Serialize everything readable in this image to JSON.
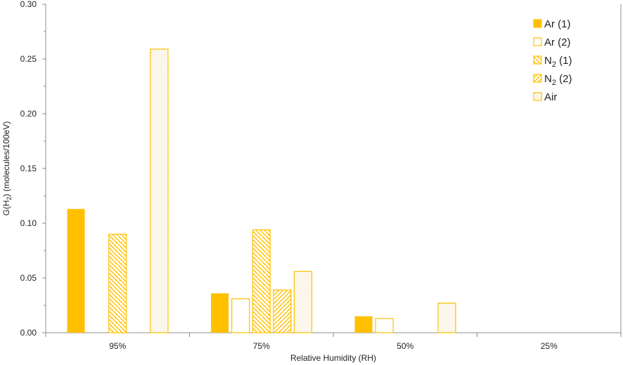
{
  "chart_data": {
    "type": "bar",
    "xlabel": "Relative Humidity (RH)",
    "ylabel": {
      "prefix": "G(H",
      "sub": "2",
      "suffix": ") (molecules/100eV)"
    },
    "ylim": [
      0,
      0.3
    ],
    "yticks": [
      "0.00",
      "0.05",
      "0.10",
      "0.15",
      "0.20",
      "0.25",
      "0.30"
    ],
    "categories": [
      "95%",
      "75%",
      "50%",
      "25%"
    ],
    "legend_position": "top-right",
    "grid": false,
    "accent_color": "#FFC000",
    "series": [
      {
        "name": "Ar (1)",
        "label_main": "Ar (1)",
        "label_sub": "",
        "label_rest": "",
        "pattern": "solid",
        "values": [
          0.113,
          0.036,
          0.015,
          null
        ]
      },
      {
        "name": "Ar (2)",
        "label_main": "Ar (2)",
        "label_sub": "",
        "label_rest": "",
        "pattern": "hollow",
        "values": [
          null,
          0.031,
          0.013,
          null
        ]
      },
      {
        "name": "N2 (1)",
        "label_main": "N",
        "label_sub": "2",
        "label_rest": " (1)",
        "pattern": "hatch-down",
        "values": [
          0.09,
          0.094,
          null,
          null
        ]
      },
      {
        "name": "N2 (2)",
        "label_main": "N",
        "label_sub": "2",
        "label_rest": " (2)",
        "pattern": "hatch-up",
        "values": [
          null,
          0.039,
          null,
          null
        ]
      },
      {
        "name": "Air",
        "label_main": "Air",
        "label_sub": "",
        "label_rest": "",
        "pattern": "dots",
        "values": [
          0.259,
          0.056,
          0.027,
          null
        ]
      }
    ]
  }
}
